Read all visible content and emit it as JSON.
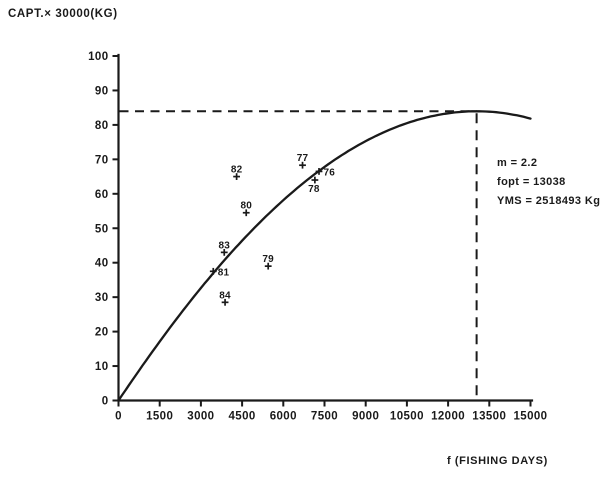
{
  "figure": {
    "y_axis_title": "CAPT.× 30000(KG)",
    "x_axis_label": "f (FISHING DAYS)",
    "annotation": {
      "lines": [
        "m = 2.2",
        "fopt = 13038",
        "YMS = 2518493 Kg"
      ]
    },
    "ink_color": "#1a1a1a",
    "background_color": "#ffffff"
  },
  "chart_data": {
    "type": "line",
    "title": "",
    "xlabel": "f (FISHING DAYS)",
    "ylabel": "CAPT.× 30000(KG)",
    "xlim": [
      0,
      15000
    ],
    "ylim": [
      0,
      100
    ],
    "x_ticks": [
      0,
      1500,
      3000,
      4500,
      6000,
      7500,
      9000,
      10500,
      12000,
      13500,
      15000
    ],
    "y_ticks": [
      0,
      10,
      20,
      30,
      40,
      50,
      60,
      70,
      80,
      90,
      100
    ],
    "grid": false,
    "legend": false,
    "curve_model": {
      "name": "generalized-surplus-production",
      "m": 2.2,
      "fopt": 13038,
      "yms_kg": 2518493,
      "catch_unit_kg": 30000,
      "ymax_catch_units": 83.95,
      "f_range": [
        0,
        15000
      ]
    },
    "reference_lines": {
      "style": "dashed",
      "horizontal_at_y": 83.95,
      "vertical_at_x": 13038
    },
    "points": [
      {
        "label": "76",
        "f": 7300,
        "catch": 66.5,
        "label_pos": "right"
      },
      {
        "label": "77",
        "f": 6700,
        "catch": 68.3,
        "label_pos": "above"
      },
      {
        "label": "78",
        "f": 7150,
        "catch": 64.0,
        "label_pos": "below"
      },
      {
        "label": "79",
        "f": 5450,
        "catch": 39.0,
        "label_pos": "above"
      },
      {
        "label": "80",
        "f": 4650,
        "catch": 54.5,
        "label_pos": "above"
      },
      {
        "label": "81",
        "f": 3450,
        "catch": 37.5,
        "label_pos": "right"
      },
      {
        "label": "82",
        "f": 4300,
        "catch": 65.0,
        "label_pos": "above"
      },
      {
        "label": "83",
        "f": 3850,
        "catch": 43.0,
        "label_pos": "above"
      },
      {
        "label": "84",
        "f": 3880,
        "catch": 28.5,
        "label_pos": "above"
      }
    ],
    "annotation_lines": [
      "m = 2.2",
      "fopt = 13038",
      "YMS = 2518493 Kg"
    ]
  }
}
